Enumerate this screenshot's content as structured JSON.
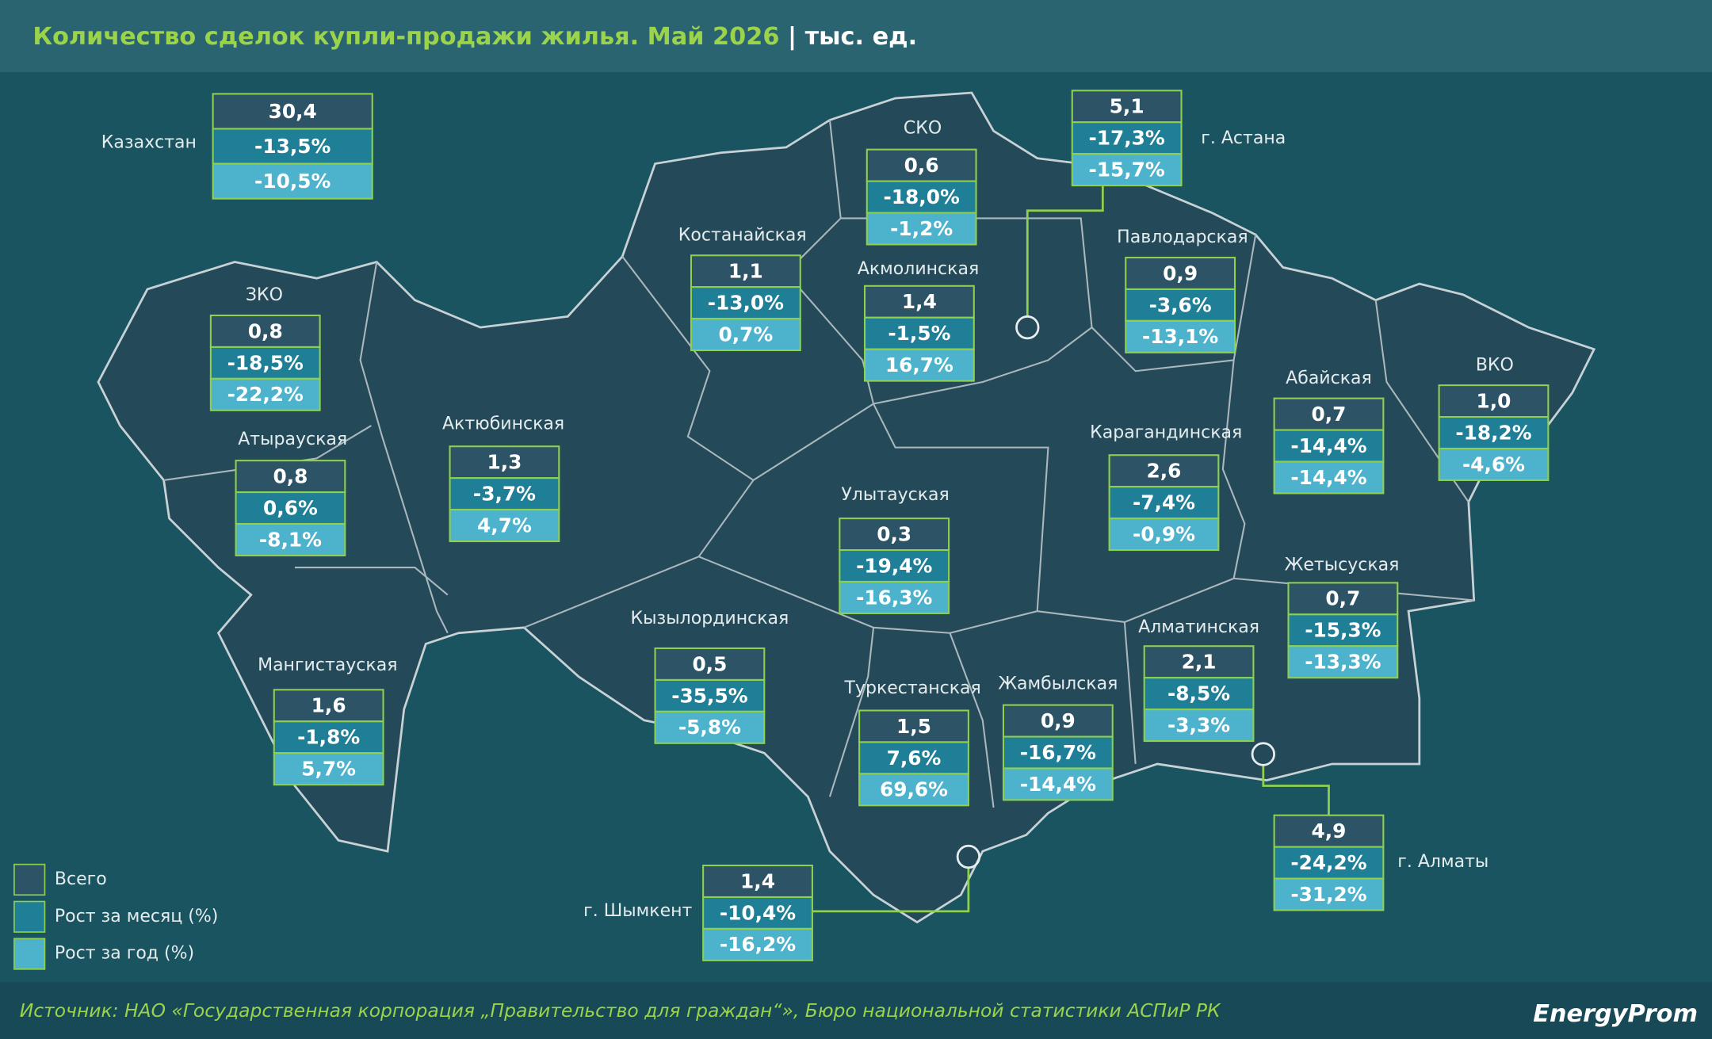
{
  "header": {
    "title": "Количество сделок купли-продажи жилья. Май 2026",
    "unit": "тыс. ед."
  },
  "regions": [
    {
      "name": "Казахстан",
      "total": "30,4",
      "month": "-13,5%",
      "year": "-10,5%"
    },
    {
      "name": "ЗКО",
      "total": "0,8",
      "month": "-18,5%",
      "year": "-22,2%"
    },
    {
      "name": "Атырауская",
      "total": "0,8",
      "month": "0,6%",
      "year": "-8,1%"
    },
    {
      "name": "Актюбинская",
      "total": "1,3",
      "month": "-3,7%",
      "year": "4,7%"
    },
    {
      "name": "Мангистауская",
      "total": "1,6",
      "month": "-1,8%",
      "year": "5,7%"
    },
    {
      "name": "Костанайская",
      "total": "1,1",
      "month": "-13,0%",
      "year": "0,7%"
    },
    {
      "name": "СКО",
      "total": "0,6",
      "month": "-18,0%",
      "year": "-1,2%"
    },
    {
      "name": "Акмолинская",
      "total": "1,4",
      "month": "-1,5%",
      "year": "16,7%"
    },
    {
      "name": "г. Астана",
      "total": "5,1",
      "month": "-17,3%",
      "year": "-15,7%"
    },
    {
      "name": "Павлодарская",
      "total": "0,9",
      "month": "-3,6%",
      "year": "-13,1%"
    },
    {
      "name": "Абайская",
      "total": "0,7",
      "month": "-14,4%",
      "year": "-14,4%"
    },
    {
      "name": "ВКО",
      "total": "1,0",
      "month": "-18,2%",
      "year": "-4,6%"
    },
    {
      "name": "Карагандинская",
      "total": "2,6",
      "month": "-7,4%",
      "year": "-0,9%"
    },
    {
      "name": "Улытауская",
      "total": "0,3",
      "month": "-19,4%",
      "year": "-16,3%"
    },
    {
      "name": "Кызылординская",
      "total": "0,5",
      "month": "-35,5%",
      "year": "-5,8%"
    },
    {
      "name": "Туркестанская",
      "total": "1,5",
      "month": "7,6%",
      "year": "69,6%"
    },
    {
      "name": "Жамбылская",
      "total": "0,9",
      "month": "-16,7%",
      "year": "-14,4%"
    },
    {
      "name": "Алматинская",
      "total": "2,1",
      "month": "-8,5%",
      "year": "-3,3%"
    },
    {
      "name": "Жетысуская",
      "total": "0,7",
      "month": "-15,3%",
      "year": "-13,3%"
    },
    {
      "name": "г. Алматы",
      "total": "4,9",
      "month": "-24,2%",
      "year": "-31,2%"
    },
    {
      "name": "г. Шымкент",
      "total": "1,4",
      "month": "-10,4%",
      "year": "-16,2%"
    }
  ],
  "legend": [
    "Всего",
    "Рост за месяц (%)",
    "Рост за год (%)"
  ],
  "source": "Источник: НАО «Государственная корпорация „Правительство для граждан“», Бюро национальной статистики АСПиР РК",
  "logo": "EnergyProm"
}
